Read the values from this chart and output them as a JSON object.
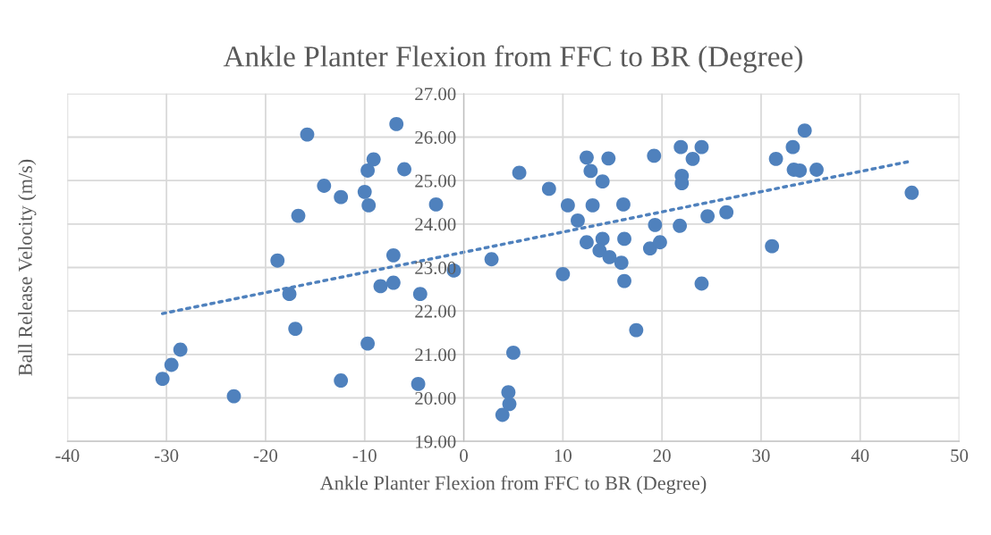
{
  "chart_data": {
    "type": "scatter",
    "title": "Ankle Planter Flexion from FFC to BR (Degree)",
    "xlabel": "Ankle Planter Flexion from FFC to BR (Degree)",
    "ylabel": "Ball Release Velocity (m/s)",
    "xlim": [
      -40,
      50
    ],
    "xticks": [
      -40,
      -30,
      -20,
      -10,
      0,
      10,
      20,
      30,
      40,
      50
    ],
    "ylim": [
      19,
      27
    ],
    "yticks": [
      {
        "value": 19,
        "label": "19.00"
      },
      {
        "value": 20,
        "label": "20.00"
      },
      {
        "value": 21,
        "label": "21.00"
      },
      {
        "value": 22,
        "label": "22.00"
      },
      {
        "value": 23,
        "label": "23.00"
      },
      {
        "value": 24,
        "label": "24.00"
      },
      {
        "value": 25,
        "label": "25.00"
      },
      {
        "value": 26,
        "label": "26.00"
      },
      {
        "value": 27,
        "label": "27.00"
      }
    ],
    "grid": true,
    "legend": false,
    "marker": "circle",
    "series": [
      {
        "color": "#4f81bd",
        "x": [
          -30.4,
          -29.5,
          -28.6,
          -23.2,
          -18.8,
          -17.6,
          -17.0,
          -16.7,
          -15.8,
          -14.1,
          -12.4,
          -12.4,
          -10.0,
          -9.7,
          -9.1,
          -9.6,
          -9.7,
          -8.4,
          -7.1,
          -7.1,
          -6.8,
          -6.0,
          -4.4,
          -4.6,
          -2.8,
          -1.0,
          2.8,
          3.9,
          4.5,
          4.6,
          5.0,
          5.6,
          8.6,
          10.0,
          10.5,
          11.5,
          12.4,
          12.8,
          12.4,
          13.0,
          14.0,
          14.0,
          13.7,
          14.6,
          14.7,
          15.9,
          16.1,
          16.2,
          16.2,
          17.4,
          18.8,
          19.2,
          19.3,
          19.8,
          21.8,
          21.9,
          22.0,
          22.0,
          23.1,
          24.0,
          24.0,
          24.6,
          26.5,
          31.1,
          31.5,
          33.2,
          33.3,
          33.9,
          34.4,
          35.6,
          45.2
        ],
        "values": [
          20.44,
          20.76,
          21.11,
          20.04,
          23.16,
          22.39,
          21.59,
          24.19,
          26.06,
          24.88,
          24.62,
          20.4,
          24.74,
          25.23,
          25.49,
          24.43,
          21.25,
          22.57,
          23.28,
          22.65,
          26.3,
          25.26,
          22.39,
          20.32,
          24.45,
          22.93,
          23.19,
          19.61,
          20.13,
          19.86,
          21.04,
          25.18,
          24.81,
          22.85,
          24.43,
          24.08,
          25.53,
          25.22,
          23.58,
          24.43,
          24.98,
          23.66,
          23.39,
          25.51,
          23.24,
          23.11,
          24.45,
          23.66,
          22.69,
          21.56,
          23.44,
          25.57,
          23.98,
          23.58,
          23.96,
          25.77,
          25.11,
          24.94,
          25.5,
          22.63,
          25.77,
          24.18,
          24.27,
          23.49,
          25.5,
          25.77,
          25.25,
          25.23,
          26.15,
          25.25,
          24.72
        ]
      },
      {
        "type": "line",
        "color": "#4f81bd",
        "line_style": "dotted",
        "marker": "none",
        "x": [
          -30.4,
          45.2
        ],
        "values": [
          21.94,
          25.45
        ]
      }
    ]
  }
}
